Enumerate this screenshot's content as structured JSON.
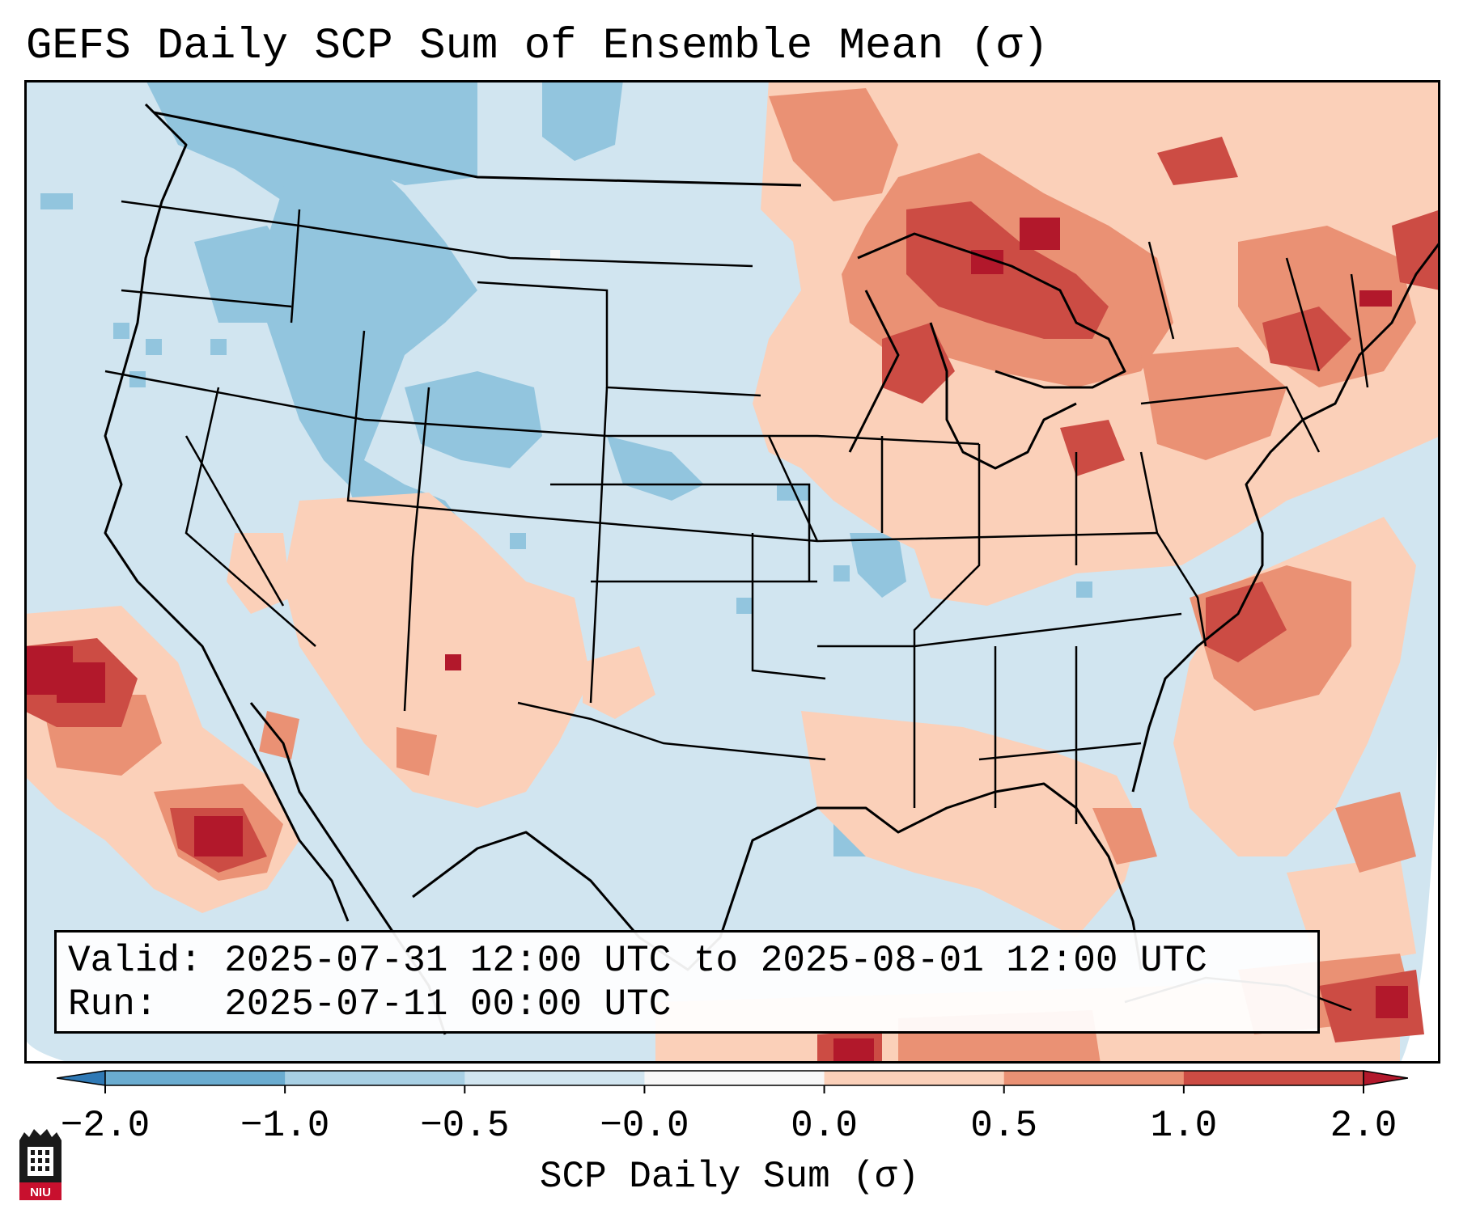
{
  "title": "GEFS Daily SCP Sum of Ensemble Mean (σ)",
  "info": {
    "valid_label": "Valid:",
    "valid_value": "2025-07-31 12:00 UTC to 2025-08-01 12:00 UTC",
    "run_label": "Run:",
    "run_value": "2025-07-11 00:00 UTC"
  },
  "colorbar": {
    "label": "SCP Daily Sum (σ)",
    "ticks": [
      "−2.0",
      "−1.0",
      "−0.5",
      "−0.0",
      "0.0",
      "0.5",
      "1.0",
      "2.0"
    ],
    "colors": [
      "#2f79b5",
      "#6aacd0",
      "#a8d0e4",
      "#d1e5f0",
      "#f7f7f7",
      "#fbd0b9",
      "#ea9174",
      "#cc4c44",
      "#b2182b"
    ]
  },
  "map": {
    "ocean_color": "#d1e5f0",
    "region": "Contiguous United States",
    "field": "SCP Daily Sum (σ)"
  },
  "logo": {
    "icon": "niu-university-logo-icon",
    "text": "NIU"
  }
}
